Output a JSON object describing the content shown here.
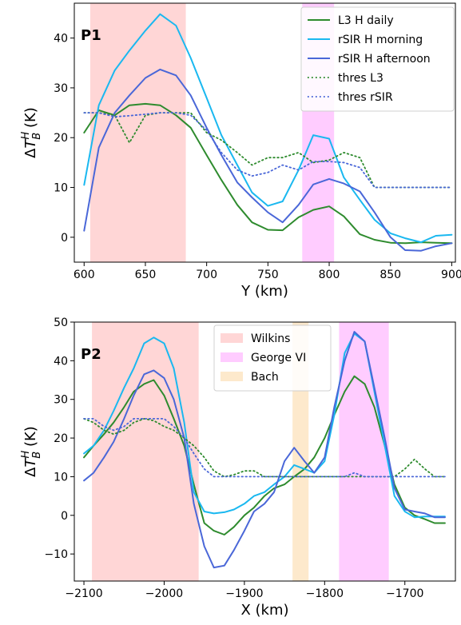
{
  "chart_data": [
    {
      "type": "line",
      "panel_label": "P1",
      "xlabel": "Y (km)",
      "ylabel": "ΔT_B^H (K)",
      "xlim": [
        592,
        903
      ],
      "ylim": [
        -5,
        47
      ],
      "xticks": [
        600,
        650,
        700,
        750,
        800,
        850,
        900
      ],
      "yticks": [
        0,
        10,
        20,
        30,
        40
      ],
      "legend_position": "top-right",
      "shaded_regions": [
        {
          "range": [
            605,
            683
          ],
          "color": "#ffd6d6"
        },
        {
          "range": [
            778,
            804
          ],
          "color": "#ffccff"
        }
      ],
      "series": [
        {
          "name": "L3 H daily",
          "color": "#2e8b2e",
          "style": "solid",
          "x": [
            600,
            612,
            625,
            637,
            650,
            662,
            675,
            687,
            700,
            712,
            725,
            737,
            750,
            762,
            775,
            787,
            800,
            812,
            825,
            837,
            850,
            862,
            875,
            887,
            900
          ],
          "y": [
            21,
            25.5,
            24.5,
            26.5,
            26.8,
            26.5,
            24.5,
            22,
            16.5,
            11.5,
            6.5,
            3,
            1.5,
            1.4,
            4,
            5.5,
            6.2,
            4.2,
            0.6,
            -0.5,
            -1.1,
            -1.2,
            -1,
            -1.1,
            -1.2
          ]
        },
        {
          "name": "rSIR H morning",
          "color": "#1ab8f0",
          "style": "solid",
          "x": [
            600,
            612,
            625,
            637,
            650,
            662,
            675,
            687,
            700,
            712,
            725,
            737,
            750,
            762,
            775,
            787,
            800,
            812,
            825,
            837,
            850,
            862,
            875,
            887,
            900
          ],
          "y": [
            10.5,
            26.5,
            33.5,
            37.5,
            41.5,
            44.8,
            42.5,
            36,
            28,
            20.5,
            14.5,
            9,
            6.3,
            7.2,
            13.5,
            20.5,
            19.8,
            12,
            7.5,
            3.5,
            0.8,
            -0.2,
            -1,
            0.3,
            0.5
          ]
        },
        {
          "name": "rSIR H afternoon",
          "color": "#4a67d8",
          "style": "solid",
          "x": [
            600,
            612,
            625,
            637,
            650,
            662,
            675,
            687,
            700,
            712,
            725,
            737,
            750,
            762,
            775,
            787,
            800,
            812,
            825,
            837,
            850,
            862,
            875,
            887,
            900
          ],
          "y": [
            1.3,
            18,
            25,
            28.5,
            32,
            33.7,
            32.5,
            28.5,
            22,
            16.5,
            11,
            8,
            5,
            3,
            6.5,
            10.6,
            11.7,
            10.8,
            9.2,
            5,
            0,
            -2.6,
            -2.7,
            -1.8,
            -1.2
          ]
        },
        {
          "name": "thres L3",
          "color": "#2e8b2e",
          "style": "dotted",
          "x": [
            600,
            612,
            625,
            637,
            650,
            662,
            675,
            687,
            700,
            712,
            725,
            737,
            750,
            762,
            775,
            787,
            800,
            812,
            825,
            837,
            850,
            862,
            875,
            887,
            900
          ],
          "y": [
            25,
            25,
            24.5,
            19,
            24.5,
            25,
            25,
            25,
            21,
            19.5,
            17,
            14.5,
            16,
            16,
            17,
            15,
            15.5,
            17,
            16,
            10,
            10,
            10,
            10,
            10,
            10
          ]
        },
        {
          "name": "thres rSIR",
          "color": "#4a67d8",
          "style": "dotted",
          "x": [
            600,
            612,
            625,
            637,
            650,
            662,
            675,
            687,
            700,
            712,
            725,
            737,
            750,
            762,
            775,
            787,
            800,
            812,
            825,
            837,
            850,
            862,
            875,
            887,
            900
          ],
          "y": [
            25,
            25,
            24.2,
            24.4,
            24.7,
            25,
            25,
            24.5,
            21.5,
            17,
            13.5,
            12.3,
            13,
            14.5,
            13.5,
            15.2,
            15.2,
            15,
            14,
            10,
            10,
            10,
            10,
            10,
            10
          ]
        }
      ]
    },
    {
      "type": "line",
      "panel_label": "P2",
      "xlabel": "X (km)",
      "ylabel": "ΔT_B^H (K)",
      "xlim": [
        -2112,
        -1637
      ],
      "ylim": [
        -17,
        50
      ],
      "xticks": [
        -2100,
        -2000,
        -1900,
        -1800,
        -1700
      ],
      "yticks": [
        -10,
        0,
        10,
        20,
        30,
        40,
        50
      ],
      "legend_position": "top-center",
      "legend": [
        {
          "label": "Wilkins",
          "color": "#ffd6d6"
        },
        {
          "label": "George VI",
          "color": "#ffccff"
        },
        {
          "label": "Bach",
          "color": "#fde9cc"
        }
      ],
      "shaded_regions": [
        {
          "name": "Wilkins",
          "range": [
            -2090,
            -1957
          ]
        },
        {
          "name": "Bach",
          "range": [
            -1840,
            -1820
          ]
        },
        {
          "name": "George VI",
          "range": [
            -1782,
            -1720
          ]
        }
      ],
      "series": [
        {
          "name": "L3 H daily",
          "color": "#2e8b2e",
          "style": "solid",
          "x": [
            -2100,
            -2088,
            -2075,
            -2063,
            -2050,
            -2038,
            -2025,
            -2013,
            -2000,
            -1988,
            -1975,
            -1963,
            -1950,
            -1938,
            -1925,
            -1913,
            -1900,
            -1888,
            -1875,
            -1863,
            -1850,
            -1838,
            -1825,
            -1813,
            -1800,
            -1788,
            -1775,
            -1763,
            -1750,
            -1738,
            -1725,
            -1713,
            -1700,
            -1688,
            -1675,
            -1663,
            -1650
          ],
          "y": [
            15,
            18,
            21,
            24,
            28,
            32,
            34,
            35,
            31,
            25,
            18,
            8,
            -2,
            -4,
            -5,
            -3,
            0,
            2,
            5,
            7,
            8,
            10,
            12,
            15,
            20,
            26,
            32,
            36,
            34,
            28,
            18,
            8,
            2,
            0,
            -1,
            -2,
            -2
          ]
        },
        {
          "name": "rSIR H morning",
          "color": "#1ab8f0",
          "style": "solid",
          "x": [
            -2100,
            -2088,
            -2075,
            -2063,
            -2050,
            -2038,
            -2025,
            -2013,
            -2000,
            -1988,
            -1975,
            -1963,
            -1950,
            -1938,
            -1925,
            -1913,
            -1900,
            -1888,
            -1875,
            -1863,
            -1850,
            -1838,
            -1825,
            -1813,
            -1800,
            -1788,
            -1775,
            -1763,
            -1750,
            -1738,
            -1725,
            -1713,
            -1700,
            -1688,
            -1675,
            -1663,
            -1650
          ],
          "y": [
            16,
            18,
            22,
            27,
            33,
            38,
            44.5,
            46,
            44.5,
            38,
            24,
            6,
            1,
            0.5,
            0.8,
            1.5,
            3,
            5,
            6,
            8,
            10,
            13,
            12,
            11,
            14,
            26,
            42,
            47,
            45,
            32,
            18,
            5,
            1,
            -0.5,
            -0.3,
            -0.3,
            -0.3
          ]
        },
        {
          "name": "rSIR H afternoon",
          "color": "#4a67d8",
          "style": "solid",
          "x": [
            -2100,
            -2088,
            -2075,
            -2063,
            -2050,
            -2038,
            -2025,
            -2013,
            -2000,
            -1988,
            -1975,
            -1963,
            -1950,
            -1938,
            -1925,
            -1913,
            -1900,
            -1888,
            -1875,
            -1863,
            -1850,
            -1838,
            -1825,
            -1813,
            -1800,
            -1788,
            -1775,
            -1763,
            -1750,
            -1738,
            -1725,
            -1713,
            -1700,
            -1688,
            -1675,
            -1663,
            -1650
          ],
          "y": [
            9,
            11,
            15,
            19,
            25,
            31,
            36.5,
            37.5,
            35.5,
            30,
            20,
            3,
            -8,
            -13.5,
            -13,
            -9,
            -4,
            1,
            3,
            6,
            14,
            17.5,
            14,
            11,
            15,
            28,
            40,
            47.5,
            45,
            33,
            20,
            7,
            1.5,
            1,
            0.5,
            -0.5,
            -0.5
          ]
        },
        {
          "name": "thres L3",
          "color": "#2e8b2e",
          "style": "dotted",
          "x": [
            -2100,
            -2088,
            -2075,
            -2063,
            -2050,
            -2038,
            -2025,
            -2013,
            -2000,
            -1988,
            -1975,
            -1963,
            -1950,
            -1938,
            -1925,
            -1913,
            -1900,
            -1888,
            -1875,
            -1863,
            -1850,
            -1838,
            -1825,
            -1813,
            -1800,
            -1788,
            -1775,
            -1763,
            -1750,
            -1738,
            -1725,
            -1713,
            -1700,
            -1688,
            -1675,
            -1663,
            -1650
          ],
          "y": [
            25,
            24,
            22,
            21,
            22,
            24,
            25,
            24.5,
            23,
            22,
            20,
            18,
            15,
            11.5,
            10,
            10.5,
            11.5,
            11.5,
            10,
            10,
            10,
            10,
            10,
            10,
            10,
            10,
            10,
            10,
            10,
            10,
            10,
            10,
            12,
            14.5,
            12,
            10,
            10
          ]
        },
        {
          "name": "thres rSIR",
          "color": "#4a67d8",
          "style": "dotted",
          "x": [
            -2100,
            -2088,
            -2075,
            -2063,
            -2050,
            -2038,
            -2025,
            -2013,
            -2000,
            -1988,
            -1975,
            -1963,
            -1950,
            -1938,
            -1925,
            -1913,
            -1900,
            -1888,
            -1875,
            -1863,
            -1850,
            -1838,
            -1825,
            -1813,
            -1800,
            -1788,
            -1775,
            -1763,
            -1750,
            -1738,
            -1725,
            -1713,
            -1700,
            -1688,
            -1675,
            -1663,
            -1650
          ],
          "y": [
            25,
            25,
            23,
            22,
            23,
            25,
            25,
            25,
            25,
            23,
            20,
            16,
            12,
            10,
            10,
            10,
            10,
            10,
            10,
            10,
            10,
            10,
            10,
            10,
            10,
            10,
            10,
            11,
            10,
            10,
            10,
            10,
            10,
            10,
            10,
            10,
            10
          ]
        }
      ]
    }
  ]
}
